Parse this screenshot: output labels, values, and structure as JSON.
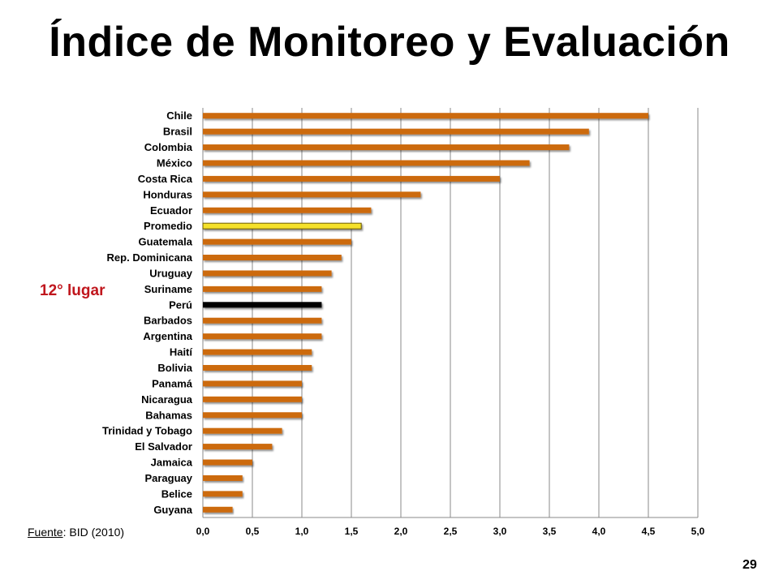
{
  "slide": {
    "title": "Índice de Monitoreo y Evaluación",
    "annotation": "12° lugar",
    "source_label": "Fuente",
    "source_text": ": BID (2010)",
    "page_number": "29"
  },
  "colors": {
    "bar": "#cc6a10",
    "highlight_average": "#f5e12a",
    "highlight_peru": "#000000",
    "annotation": "#c0161d"
  },
  "chart_data": {
    "type": "bar",
    "orientation": "horizontal",
    "title": "",
    "xlabel": "",
    "ylabel": "",
    "xlim": [
      0,
      5
    ],
    "x_ticks": [
      "0,0",
      "0,5",
      "1,0",
      "1,5",
      "2,0",
      "2,5",
      "3,0",
      "3,5",
      "4,0",
      "4,5",
      "5,0"
    ],
    "grid": true,
    "categories": [
      "Chile",
      "Brasil",
      "Colombia",
      "México",
      "Costa Rica",
      "Honduras",
      "Ecuador",
      "Promedio",
      "Guatemala",
      "Rep. Dominicana",
      "Uruguay",
      "Suriname",
      "Perú",
      "Barbados",
      "Argentina",
      "Haití",
      "Bolivia",
      "Panamá",
      "Nicaragua",
      "Bahamas",
      "Trinidad y Tobago",
      "El Salvador",
      "Jamaica",
      "Paraguay",
      "Belice",
      "Guyana"
    ],
    "values": [
      4.5,
      3.9,
      3.7,
      3.3,
      3.0,
      2.2,
      1.7,
      1.6,
      1.5,
      1.4,
      1.3,
      1.2,
      1.2,
      1.2,
      1.2,
      1.1,
      1.1,
      1.0,
      1.0,
      1.0,
      0.8,
      0.7,
      0.5,
      0.4,
      0.4,
      0.3
    ],
    "highlights": {
      "Promedio": "highlight_average",
      "Perú": "highlight_peru"
    }
  }
}
